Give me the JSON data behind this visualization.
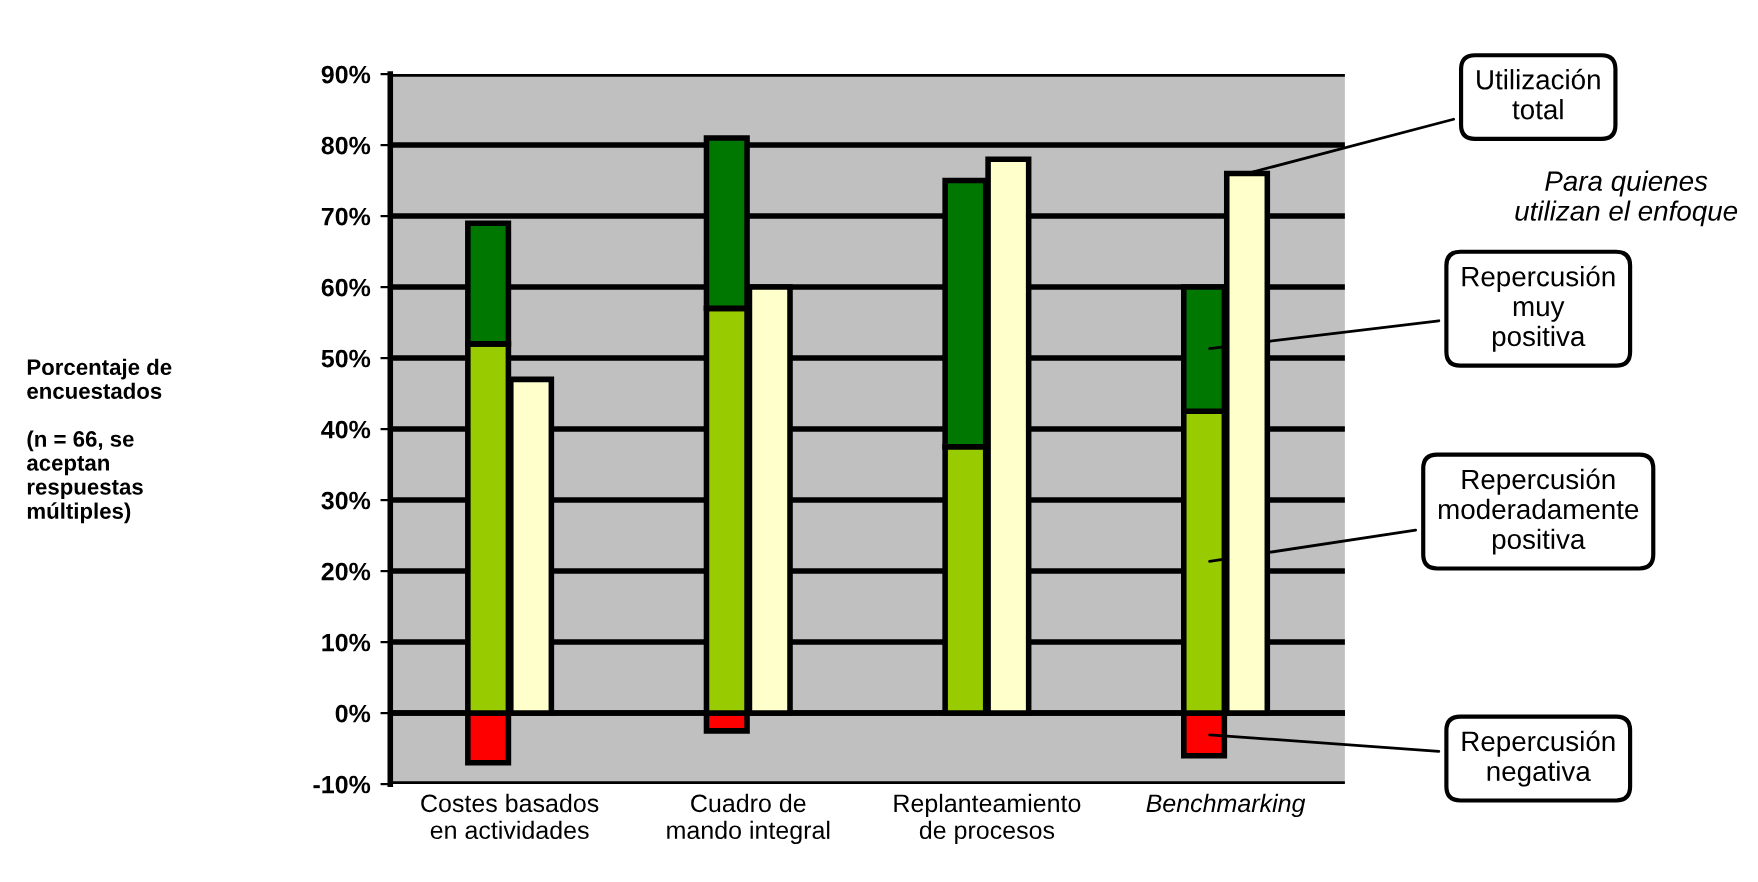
{
  "chart_data": [
    {
      "type": "bar",
      "stacked": true,
      "ylabel": "Porcentaje de\nencuestados\n\n(n = 66, se\naceptan\nrespuestas\nmúltiples)",
      "categories": [
        "Costes basados\nen actividades",
        "Cuadro de\nmando integral",
        "Replanteamiento\nde procesos",
        "Benchmarking"
      ],
      "series": [
        {
          "name": "Repercusión\nnegativa",
          "color": "#ff0000",
          "values": [
            -7,
            -2.5,
            null,
            -6
          ]
        },
        {
          "name": "Repercusión\nmoderadamente\npositiva",
          "color": "#99cc00",
          "values": [
            52,
            57,
            37.5,
            42.5
          ]
        },
        {
          "name": "Repercusión\nmuy\npositiva",
          "color": "#007700",
          "values": [
            17,
            24,
            37.5,
            17.5
          ]
        }
      ],
      "annotations": [
        "Para quienes\nutilizan el enfoque"
      ],
      "ylim": [
        -10,
        90
      ],
      "yticks": [
        {
          "value": -10,
          "label": "-10%"
        },
        {
          "value": 0,
          "label": "0%"
        },
        {
          "value": 10,
          "label": "10%"
        },
        {
          "value": 20,
          "label": "20%"
        },
        {
          "value": 30,
          "label": "30%"
        },
        {
          "value": 40,
          "label": "40%"
        },
        {
          "value": 50,
          "label": "50%"
        },
        {
          "value": 60,
          "label": "60%"
        },
        {
          "value": 70,
          "label": "70%"
        },
        {
          "value": 80,
          "label": "80%"
        },
        {
          "value": 90,
          "label": "90%"
        }
      ],
      "grid": "y"
    },
    {
      "type": "bar",
      "categories": [
        null,
        null,
        null,
        null
      ],
      "series": [
        {
          "name": "Utilización\ntotal",
          "color": "#ffffcc",
          "values": [
            47,
            60,
            78,
            76
          ]
        }
      ],
      "ylim": [
        -10,
        90
      ]
    }
  ]
}
